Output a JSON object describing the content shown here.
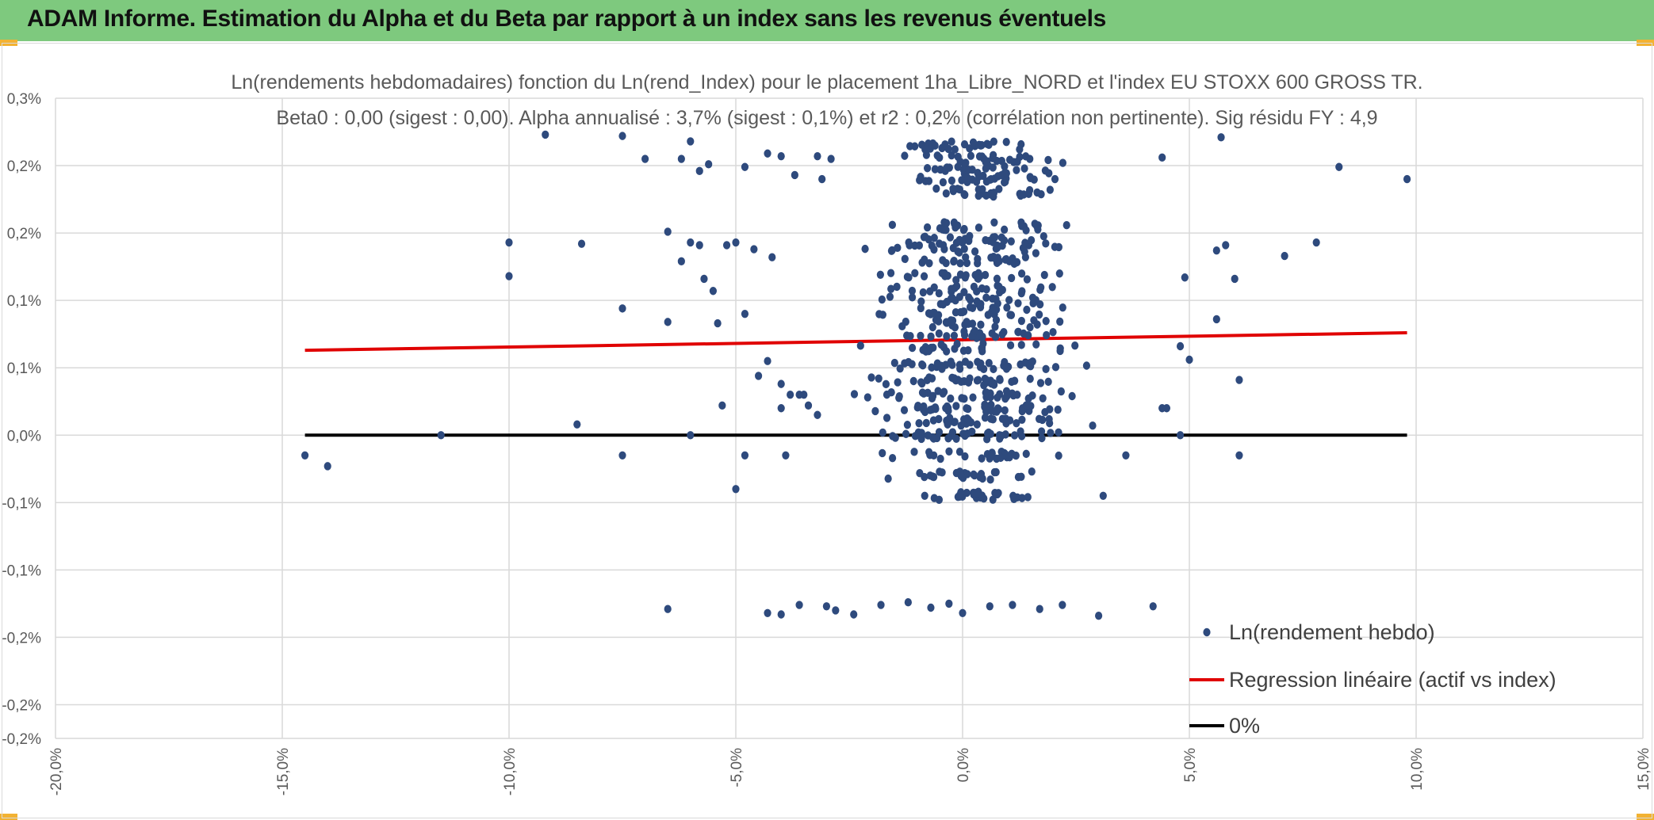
{
  "banner": {
    "title": "ADAM Informe. Estimation du Alpha et du Beta par rapport à un index sans les revenus éventuels",
    "color": "#7ec97e",
    "corner_color": "#f2b233"
  },
  "chart_data": {
    "type": "scatter",
    "title": "Ln(rendements hebdomadaires) fonction du Ln(rend_Index) pour le placement 1ha_Libre_NORD et l'index EU STOXX 600 GROSS TR.",
    "subtitle": "Beta0 : 0,00 (sigest : 0,00). Alpha annualisé : 3,7% (sigest : 0,1%) et r2 : 0,2% (corrélation non pertinente). Sig résidu FY : 4,9",
    "xlim": [
      -20,
      15
    ],
    "ylim": [
      -0.225,
      0.25
    ],
    "x_ticks": [
      {
        "value": -20,
        "label": "-20,0%"
      },
      {
        "value": -15,
        "label": "-15,0%"
      },
      {
        "value": -10,
        "label": "-10,0%"
      },
      {
        "value": -5,
        "label": "-5,0%"
      },
      {
        "value": 0,
        "label": "0,0%"
      },
      {
        "value": 5,
        "label": "5,0%"
      },
      {
        "value": 10,
        "label": "10,0%"
      },
      {
        "value": 15,
        "label": "15,0%"
      }
    ],
    "y_ticks": [
      {
        "value": 0.25,
        "label": "0,3%"
      },
      {
        "value": 0.2,
        "label": "0,2%"
      },
      {
        "value": 0.15,
        "label": "0,2%"
      },
      {
        "value": 0.1,
        "label": "0,1%"
      },
      {
        "value": 0.05,
        "label": "0,1%"
      },
      {
        "value": 0.0,
        "label": "0,0%"
      },
      {
        "value": -0.05,
        "label": "-0,1%"
      },
      {
        "value": -0.1,
        "label": "-0,1%"
      },
      {
        "value": -0.15,
        "label": "-0,2%"
      },
      {
        "value": -0.2,
        "label": "-0,2%"
      },
      {
        "value": -0.225,
        "label": "-0,2%"
      }
    ],
    "grid": true,
    "legend_position": "bottom-right",
    "series": [
      {
        "name": "Ln(rendement hebdo)",
        "kind": "scatter",
        "color": "#2e4a7d",
        "points": [
          [
            -14.5,
            -0.015
          ],
          [
            -14.0,
            -0.023
          ],
          [
            -11.5,
            0.0
          ],
          [
            -8.5,
            0.008
          ],
          [
            -7.5,
            -0.015
          ],
          [
            -6.0,
            0.0
          ],
          [
            -5.0,
            -0.04
          ],
          [
            -5.3,
            0.022
          ],
          [
            -4.8,
            -0.015
          ],
          [
            -3.9,
            -0.015
          ],
          [
            -10.0,
            0.143
          ],
          [
            -10.0,
            0.118
          ],
          [
            -8.4,
            0.142
          ],
          [
            -7.5,
            0.094
          ],
          [
            -6.5,
            0.084
          ],
          [
            -6.5,
            0.151
          ],
          [
            -6.2,
            0.129
          ],
          [
            -6.0,
            0.143
          ],
          [
            -5.8,
            0.141
          ],
          [
            -5.7,
            0.116
          ],
          [
            -5.5,
            0.107
          ],
          [
            -5.4,
            0.083
          ],
          [
            -5.2,
            0.141
          ],
          [
            -4.6,
            0.138
          ],
          [
            -4.2,
            0.132
          ],
          [
            -4.8,
            0.09
          ],
          [
            -5.0,
            0.143
          ],
          [
            -9.2,
            0.223
          ],
          [
            -7.5,
            0.222
          ],
          [
            -7.0,
            0.205
          ],
          [
            -6.2,
            0.205
          ],
          [
            -6.0,
            0.218
          ],
          [
            -5.8,
            0.196
          ],
          [
            -5.6,
            0.201
          ],
          [
            -4.8,
            0.199
          ],
          [
            -4.3,
            0.209
          ],
          [
            -4.0,
            0.207
          ],
          [
            -3.7,
            0.193
          ],
          [
            -3.2,
            0.207
          ],
          [
            -3.1,
            0.19
          ],
          [
            -2.9,
            0.205
          ],
          [
            -4.5,
            0.044
          ],
          [
            -4.3,
            0.055
          ],
          [
            -4.0,
            0.038
          ],
          [
            -3.8,
            0.03
          ],
          [
            -3.6,
            0.03
          ],
          [
            -3.4,
            0.022
          ],
          [
            -3.2,
            0.015
          ],
          [
            -4.0,
            0.02
          ],
          [
            -3.5,
            0.03
          ],
          [
            -6.5,
            -0.129
          ],
          [
            -4.3,
            -0.132
          ],
          [
            -4.0,
            -0.133
          ],
          [
            -3.6,
            -0.126
          ],
          [
            -3.0,
            -0.127
          ],
          [
            -2.8,
            -0.13
          ],
          [
            -2.4,
            -0.133
          ],
          [
            -1.8,
            -0.126
          ],
          [
            -1.2,
            -0.124
          ],
          [
            -0.7,
            -0.128
          ],
          [
            -0.3,
            -0.125
          ],
          [
            0.0,
            -0.132
          ],
          [
            0.6,
            -0.127
          ],
          [
            1.1,
            -0.126
          ],
          [
            1.7,
            -0.129
          ],
          [
            2.2,
            -0.126
          ],
          [
            3.0,
            -0.134
          ],
          [
            4.2,
            -0.127
          ],
          [
            4.8,
            0.066
          ],
          [
            5.6,
            0.086
          ],
          [
            6.1,
            0.041
          ],
          [
            5.0,
            0.056
          ],
          [
            5.6,
            0.137
          ],
          [
            5.8,
            0.141
          ],
          [
            6.0,
            0.116
          ],
          [
            7.1,
            0.133
          ],
          [
            7.8,
            0.143
          ],
          [
            8.3,
            0.199
          ],
          [
            9.8,
            0.19
          ],
          [
            5.7,
            0.221
          ],
          [
            4.4,
            0.206
          ],
          [
            4.9,
            0.117
          ],
          [
            6.1,
            -0.015
          ],
          [
            4.8,
            0.0
          ],
          [
            4.4,
            0.02
          ],
          [
            4.5,
            0.02
          ],
          [
            3.6,
            -0.015
          ],
          [
            3.1,
            -0.045
          ]
        ]
      },
      {
        "name": "Regression linéaire (actif vs index)",
        "kind": "line",
        "color": "#e00000",
        "points": [
          [
            -14.5,
            0.063
          ],
          [
            9.8,
            0.076
          ]
        ]
      },
      {
        "name": "0%",
        "kind": "line",
        "color": "#000000",
        "points": [
          [
            -14.5,
            0.0
          ],
          [
            9.8,
            0.0
          ]
        ]
      }
    ],
    "cluster": {
      "note": "dense cloud around x in [-2.8, 3.0]; y levels",
      "y_levels": [
        -0.045,
        -0.03,
        -0.015,
        0.0,
        0.01,
        0.02,
        0.03,
        0.04,
        0.052,
        0.065,
        0.075,
        0.083,
        0.092,
        0.1,
        0.108,
        0.118,
        0.13,
        0.138,
        0.145,
        0.155,
        0.18,
        0.19,
        0.197,
        0.205,
        0.215
      ]
    }
  }
}
